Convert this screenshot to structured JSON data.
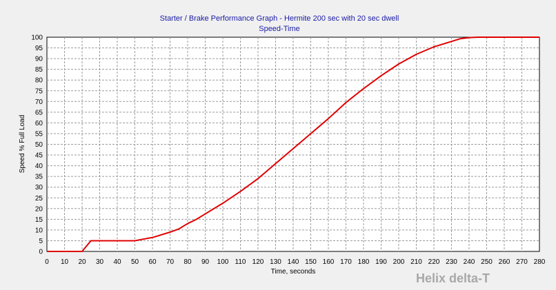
{
  "chart_data": {
    "type": "line",
    "title": "Starter / Brake Performance Graph - Hermite 200 sec with 20 sec dwell",
    "subtitle": "Speed-Time",
    "xlabel": "Time, seconds",
    "ylabel": "Speed % Full Load",
    "xlim": [
      0,
      280
    ],
    "ylim": [
      0,
      100
    ],
    "x_ticks": [
      0,
      10,
      20,
      30,
      40,
      50,
      60,
      70,
      80,
      90,
      100,
      110,
      120,
      130,
      140,
      150,
      160,
      170,
      180,
      190,
      200,
      210,
      220,
      230,
      240,
      250,
      260,
      270,
      280
    ],
    "y_ticks": [
      0,
      5,
      10,
      15,
      20,
      25,
      30,
      35,
      40,
      45,
      50,
      55,
      60,
      65,
      70,
      75,
      80,
      85,
      90,
      95,
      100
    ],
    "grid": true,
    "series": [
      {
        "color": "#e00000",
        "x": [
          0,
          20,
          25,
          30,
          40,
          50,
          60,
          70,
          75,
          80,
          85,
          90,
          100,
          110,
          120,
          130,
          140,
          150,
          160,
          170,
          180,
          190,
          200,
          210,
          220,
          230,
          235,
          240,
          245,
          250,
          260,
          270,
          280
        ],
        "y": [
          0,
          0,
          5,
          5,
          5,
          5,
          6.5,
          9,
          10.5,
          13,
          15,
          17.5,
          22.5,
          28,
          34,
          41,
          48,
          55,
          62,
          69.5,
          76,
          82,
          87.5,
          92,
          95.5,
          98,
          99.3,
          99.8,
          100,
          100,
          100,
          100,
          100
        ]
      }
    ]
  },
  "watermark": "Helix delta-T"
}
